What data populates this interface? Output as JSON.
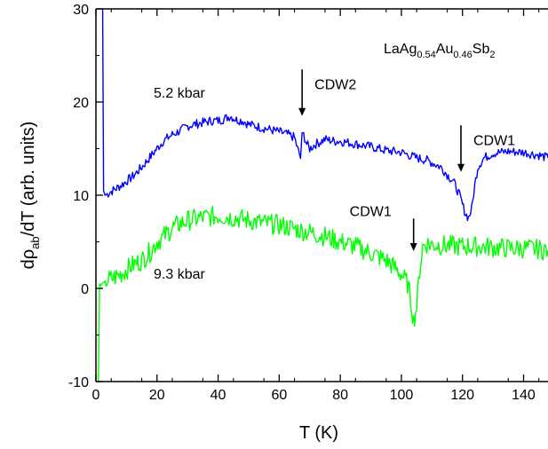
{
  "chart_data": {
    "type": "line",
    "title": "",
    "xlabel": "T (K)",
    "ylabel": {
      "pre": "d",
      "rho": "ρ",
      "sub": "ab",
      "post": "/dT (arb. units)"
    },
    "xlim": [
      0,
      148
    ],
    "ylim": [
      -10,
      30
    ],
    "xticks": [
      0,
      20,
      40,
      60,
      80,
      100,
      120,
      140
    ],
    "yticks": [
      -10,
      0,
      10,
      20,
      30
    ],
    "grid": false,
    "legend": "none",
    "sample_label": {
      "parts": [
        {
          "t": "LaAg",
          "sub": false
        },
        {
          "t": "0.54",
          "sub": true
        },
        {
          "t": "Au",
          "sub": false
        },
        {
          "t": "0.46",
          "sub": true
        },
        {
          "t": "Sb",
          "sub": false
        },
        {
          "t": "2",
          "sub": true
        }
      ]
    },
    "series": [
      {
        "label": "5.2 kbar",
        "color": "#0000ff",
        "x": [
          2.2,
          2.5,
          3,
          4,
          5,
          6,
          8,
          10,
          12,
          15,
          18,
          20,
          22,
          25,
          28,
          30,
          32,
          35,
          38,
          40,
          42,
          44,
          46,
          48,
          50,
          55,
          60,
          63,
          65,
          66,
          67,
          67.5,
          68,
          69,
          70,
          72,
          75,
          78,
          80,
          85,
          90,
          95,
          100,
          105,
          108,
          110,
          113,
          115,
          117,
          118,
          119,
          120,
          121,
          122,
          123,
          124,
          125,
          127,
          130,
          135,
          140,
          145,
          148
        ],
        "y": [
          30,
          10.5,
          10,
          10.2,
          10.4,
          10.6,
          11,
          11.5,
          12,
          13,
          14.2,
          15,
          15.8,
          16.5,
          17,
          17.4,
          17.6,
          17.8,
          18,
          18,
          18.2,
          18.5,
          18.1,
          18,
          17.6,
          17.2,
          16.8,
          16.5,
          16.2,
          15,
          14,
          16.3,
          16.5,
          15.5,
          15,
          15.5,
          16,
          15.8,
          15.8,
          15.5,
          15.2,
          14.8,
          14.6,
          14,
          13.8,
          13.5,
          13,
          12.2,
          11.5,
          10.8,
          10,
          9,
          8,
          7.6,
          8.5,
          11,
          13,
          14,
          14.5,
          14.7,
          14.6,
          14.3,
          14
        ]
      },
      {
        "label": "9.3 kbar",
        "color": "#00ff00",
        "x": [
          0.8,
          1.2,
          1.6,
          2,
          3,
          5,
          8,
          10,
          12,
          15,
          18,
          20,
          22,
          25,
          28,
          30,
          35,
          40,
          45,
          50,
          55,
          60,
          65,
          70,
          75,
          80,
          85,
          90,
          95,
          98,
          100,
          102,
          103,
          104,
          105,
          106,
          107,
          108,
          110,
          115,
          120,
          125,
          130,
          135,
          140,
          145,
          148
        ],
        "y": [
          -10,
          0.5,
          0.3,
          0.5,
          0.8,
          1,
          1.5,
          2,
          2.5,
          3,
          4,
          5,
          5.5,
          6.5,
          7,
          7.3,
          7.6,
          7.8,
          7.6,
          7.3,
          7,
          6.8,
          6.4,
          6,
          5.6,
          5,
          4.5,
          3.8,
          3,
          2.2,
          1.5,
          0.5,
          -1,
          -3.5,
          -2,
          2,
          4.5,
          4.8,
          4.7,
          4.6,
          4.5,
          4.5,
          4.4,
          4.3,
          4.3,
          4.2,
          4.1
        ]
      }
    ],
    "annotations": [
      {
        "text": "CDW2",
        "arrow_x": 67.5,
        "arrow_y_top": 23.5,
        "arrow_y_bottom": 18.5
      },
      {
        "text": "CDW1",
        "arrow_x": 119.5,
        "arrow_y_top": 17.5,
        "arrow_y_bottom": 12.5
      },
      {
        "text": "CDW1",
        "arrow_x": 104,
        "arrow_y_top": 7.5,
        "arrow_y_bottom": 4
      }
    ]
  }
}
